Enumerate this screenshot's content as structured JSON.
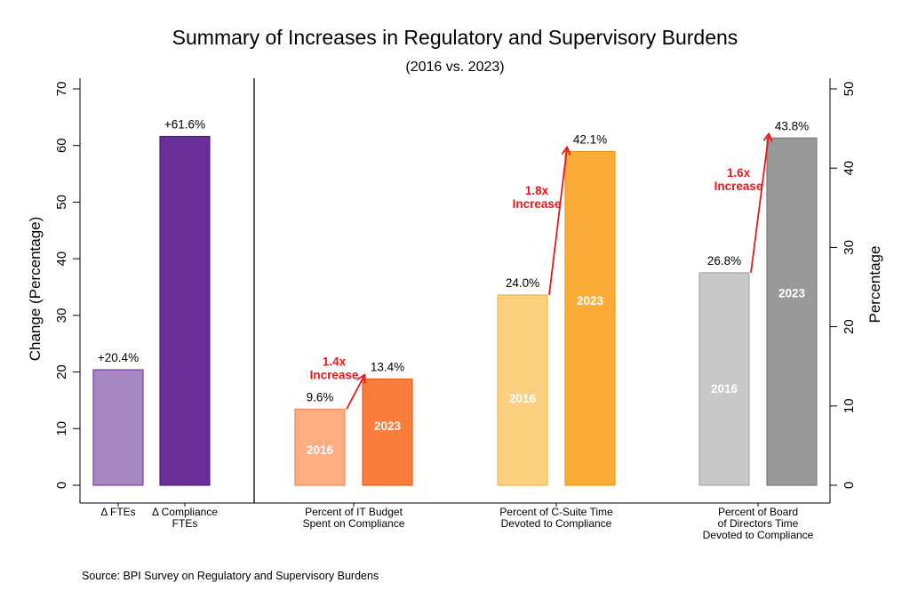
{
  "title": "Summary of Increases in Regulatory and Supervisory Burdens",
  "subtitle": "(2016 vs. 2023)",
  "source": "Source: BPI Survey on Regulatory and Supervisory Burdens",
  "chart_data": {
    "type": "bar",
    "left_axis": {
      "label": "Change (Percentage)",
      "ylim": [
        0,
        70
      ],
      "ticks": [
        0,
        10,
        20,
        30,
        40,
        50,
        60,
        70
      ]
    },
    "right_axis": {
      "label": "Percentage",
      "ylim": [
        0,
        50
      ],
      "ticks": [
        0,
        10,
        20,
        30,
        40,
        50
      ]
    },
    "grid": false,
    "left_panel": {
      "axis": "left",
      "bars": [
        {
          "category": "Δ FTEs",
          "value": 20.4,
          "label": "+20.4%",
          "color": "#a687c2",
          "stroke": "#7a3fa8"
        },
        {
          "category": "Δ Compliance\nFTEs",
          "value": 61.6,
          "label": "+61.6%",
          "color": "#6a2f99",
          "stroke": "#4e1f7a"
        }
      ]
    },
    "groups": [
      {
        "category": "Percent of IT Budget\nSpent on Compliance",
        "axis": "right",
        "bars": [
          {
            "year": "2016",
            "value": 9.6,
            "label": "9.6%",
            "color": "#fcad82",
            "stroke": "#f08a55"
          },
          {
            "year": "2023",
            "value": 13.4,
            "label": "13.4%",
            "color": "#f97d3b",
            "stroke": "#e0601f"
          }
        ],
        "annotation": "1.4x\nIncrease"
      },
      {
        "category": "Percent of C-Suite Time\nDevoted to Compliance",
        "axis": "right",
        "bars": [
          {
            "year": "2016",
            "value": 24.0,
            "label": "24.0%",
            "color": "#fdd080",
            "stroke": "#f5b542"
          },
          {
            "year": "2023",
            "value": 42.1,
            "label": "42.1%",
            "color": "#fbad38",
            "stroke": "#e8951c"
          }
        ],
        "annotation": "1.8x\nIncrease"
      },
      {
        "category": "Percent of Board\nof Directors Time\nDevoted to Compliance",
        "axis": "right",
        "bars": [
          {
            "year": "2016",
            "value": 26.8,
            "label": "26.8%",
            "color": "#c8c8c8",
            "stroke": "#a8a8a8"
          },
          {
            "year": "2023",
            "value": 43.8,
            "label": "43.8%",
            "color": "#999999",
            "stroke": "#7a7a7a"
          }
        ],
        "annotation": "1.6x\nIncrease"
      }
    ],
    "annotation_color": "#e8191c"
  }
}
